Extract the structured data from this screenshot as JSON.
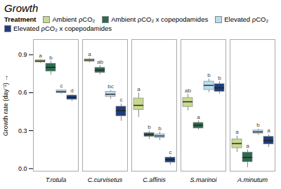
{
  "chart_data": {
    "type": "box",
    "title": "Growth",
    "ylabel": "Growth rate (day⁻¹)",
    "categories": [
      "T.rotula",
      "C.curvisetus",
      "C.affinis",
      "S.marinoi",
      "A.minutum"
    ],
    "legend_title": "Treatment",
    "legend": "top",
    "grid": false,
    "ylim": [
      -0.02,
      1.02
    ],
    "yticks": [
      {
        "value": 0.0,
        "label": "0.0"
      },
      0.3,
      0.6,
      0.9
    ],
    "series": [
      {
        "name": "Ambient ρCO₂",
        "color": "#c8d98e",
        "q1": [
          0.84,
          0.845,
          0.465,
          0.488,
          0.162
        ],
        "med": [
          0.85,
          0.858,
          0.5,
          0.528,
          0.198
        ],
        "q3": [
          0.858,
          0.865,
          0.555,
          0.558,
          0.232
        ],
        "whislo": [
          0.832,
          0.835,
          0.405,
          0.458,
          0.128
        ],
        "whishi": [
          0.862,
          0.872,
          0.598,
          0.588,
          0.258
        ],
        "letters": [
          "a",
          "a",
          "a",
          "ab",
          "a"
        ]
      },
      {
        "name": "Ambient ρCO₂ x copepodamides",
        "color": "#2d6a4f",
        "q1": [
          0.768,
          0.758,
          0.252,
          0.318,
          0.052
        ],
        "med": [
          0.8,
          0.778,
          0.268,
          0.342,
          0.088
        ],
        "q3": [
          0.83,
          0.798,
          0.282,
          0.362,
          0.128
        ],
        "whislo": [
          0.74,
          0.742,
          0.232,
          0.305,
          0.008
        ],
        "whishi": [
          0.848,
          0.815,
          0.298,
          0.378,
          0.148
        ],
        "letters": [
          "b",
          "ab",
          "b",
          "a",
          "a"
        ]
      },
      {
        "name": "Elevated ρCO₂",
        "color": "#b8ddf0",
        "q1": [
          0.598,
          0.568,
          0.242,
          0.622,
          0.278
        ],
        "med": [
          0.608,
          0.588,
          0.258,
          0.658,
          0.29
        ],
        "q3": [
          0.618,
          0.608,
          0.272,
          0.688,
          0.302
        ],
        "whislo": [
          0.59,
          0.548,
          0.222,
          0.602,
          0.265
        ],
        "whishi": [
          0.622,
          0.618,
          0.288,
          0.708,
          0.312
        ],
        "letters": [
          "c",
          "bc",
          "b",
          "b",
          "b"
        ]
      },
      {
        "name": "Elevated ρCO₂ x copepodamides",
        "color": "#1f3d7a",
        "q1": [
          0.545,
          0.415,
          0.048,
          0.608,
          0.192
        ],
        "med": [
          0.562,
          0.458,
          0.072,
          0.638,
          0.222
        ],
        "q3": [
          0.578,
          0.49,
          0.088,
          0.668,
          0.252
        ],
        "whislo": [
          0.53,
          0.375,
          0.028,
          0.59,
          0.168
        ],
        "whishi": [
          0.585,
          0.512,
          0.098,
          0.688,
          0.268
        ],
        "letters": [
          "d",
          "c",
          "c",
          "b",
          "a"
        ]
      }
    ]
  }
}
